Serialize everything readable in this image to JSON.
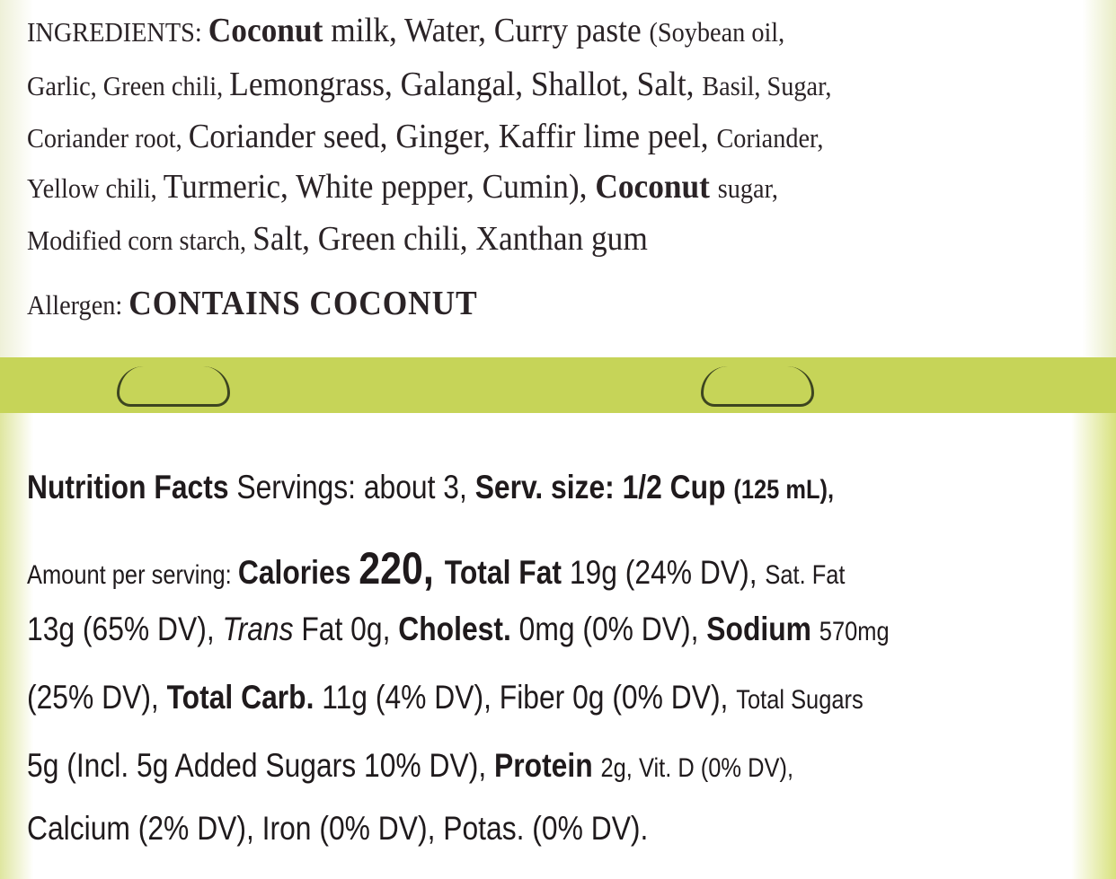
{
  "ingredients": [
    [
      {
        "t": "INGREDIENTS: ",
        "c": "s"
      },
      {
        "t": "Coconut ",
        "c": "b"
      },
      {
        "t": "milk, Water, Curry paste "
      },
      {
        "t": "(Soybean oil,",
        "c": "s"
      }
    ],
    [
      {
        "t": "Garlic, Green chili, ",
        "c": "s"
      },
      {
        "t": "Lemongrass, Galangal, Shallot, Salt, "
      },
      {
        "t": "Basil, Sugar,",
        "c": "s"
      }
    ],
    [
      {
        "t": "Coriander root, ",
        "c": "s"
      },
      {
        "t": "Coriander seed, Ginger, Kaffir lime peel, "
      },
      {
        "t": "Coriander,",
        "c": "s"
      }
    ],
    [
      {
        "t": "Yellow chili, ",
        "c": "s"
      },
      {
        "t": "Turmeric, White pepper, Cumin), "
      },
      {
        "t": "Coconut ",
        "c": "b"
      },
      {
        "t": "sugar,",
        "c": "s"
      }
    ],
    [
      {
        "t": "Modified corn starch, ",
        "c": "s"
      },
      {
        "t": "Salt, Green chili, Xanthan gum"
      }
    ]
  ],
  "allergen": [
    {
      "t": "Allergen: ",
      "c": "s"
    },
    {
      "t": "CONTAINS COCONUT",
      "c": "b caps"
    }
  ],
  "nutrition": [
    [
      {
        "t": "Nutrition Facts ",
        "c": "b"
      },
      {
        "t": "Servings: about 3, "
      },
      {
        "t": "Serv. size: 1/2 Cup ",
        "c": "b"
      },
      {
        "t": "(125 mL),",
        "c": "b s"
      }
    ],
    [
      {
        "t": "Amount per serving: ",
        "c": "s"
      },
      {
        "t": "Calories ",
        "c": "b"
      },
      {
        "t": "220, ",
        "c": "b xl"
      },
      {
        "t": "Total Fat ",
        "c": "b"
      },
      {
        "t": "19g (24% DV), "
      },
      {
        "t": "Sat. Fat",
        "c": "s"
      }
    ],
    [
      {
        "t": "13g (65% DV), "
      },
      {
        "t": "Trans ",
        "c": "i"
      },
      {
        "t": "Fat 0g, "
      },
      {
        "t": "Cholest. ",
        "c": "b"
      },
      {
        "t": "0mg (0% DV), "
      },
      {
        "t": "Sodium ",
        "c": "b"
      },
      {
        "t": "570mg",
        "c": "s"
      }
    ],
    [
      {
        "t": "(25% DV), "
      },
      {
        "t": "Total Carb. ",
        "c": "b"
      },
      {
        "t": "11g (4% DV), Fiber 0g (0% DV), "
      },
      {
        "t": "Total Sugars",
        "c": "s"
      }
    ],
    [
      {
        "t": "5g (Incl. 5g Added Sugars 10% DV), "
      },
      {
        "t": "Protein ",
        "c": "b"
      },
      {
        "t": "2g, Vit. D (0% DV),",
        "c": "s"
      }
    ],
    [
      {
        "t": "Calcium (2% DV), Iron (0% DV), Potas. (0% DV)."
      }
    ]
  ],
  "colors": {
    "label_green": "#c9d65c",
    "text": "#2a2326"
  }
}
